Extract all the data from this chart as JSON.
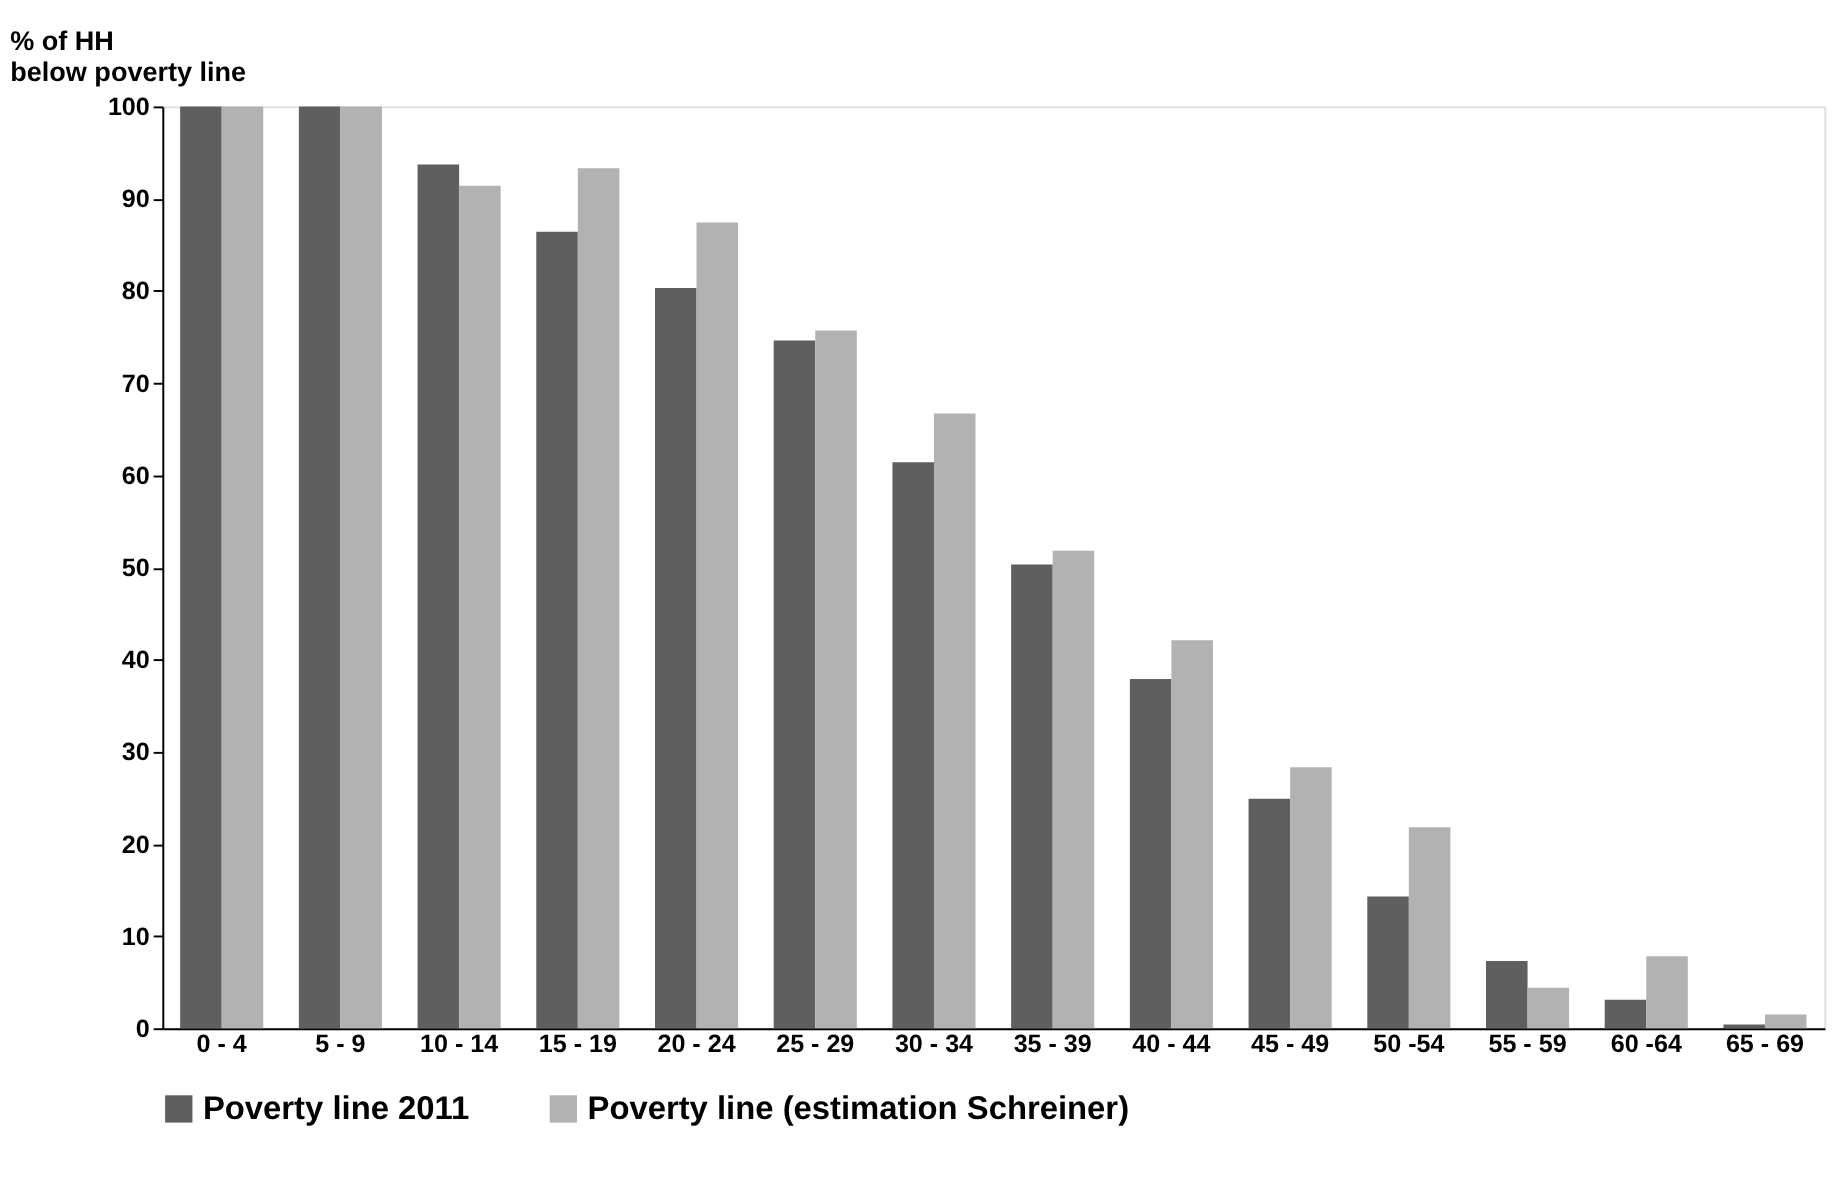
{
  "chart_data": {
    "type": "bar",
    "ylabel": "% of HH\nbelow poverty line",
    "categories": [
      "0 - 4",
      "5 - 9",
      "10 - 14",
      "15 - 19",
      "20 - 24",
      "25 - 29",
      "30 - 34",
      "35 - 39",
      "40 - 44",
      "45 - 49",
      "50 -54",
      "55 - 59",
      "60 -64",
      "65 - 69"
    ],
    "series": [
      {
        "name": "Poverty line 2011",
        "color": "#5f5f5f",
        "values": [
          100,
          100,
          93.7,
          86.4,
          80.3,
          74.6,
          61.4,
          50.3,
          37.9,
          24.9,
          14.3,
          7.3,
          3.1,
          0.4
        ]
      },
      {
        "name": "Poverty line (estimation Schreiner)",
        "color": "#b2b2b2",
        "values": [
          100,
          100,
          91.4,
          93.3,
          87.4,
          75.7,
          66.7,
          51.8,
          42.1,
          28.3,
          21.8,
          4.4,
          7.8,
          1.5
        ]
      }
    ],
    "ylim": [
      0,
      100
    ],
    "yticks": [
      0,
      10,
      20,
      30,
      40,
      50,
      60,
      70,
      80,
      90,
      100
    ],
    "grid": false,
    "legend": "bottom"
  }
}
